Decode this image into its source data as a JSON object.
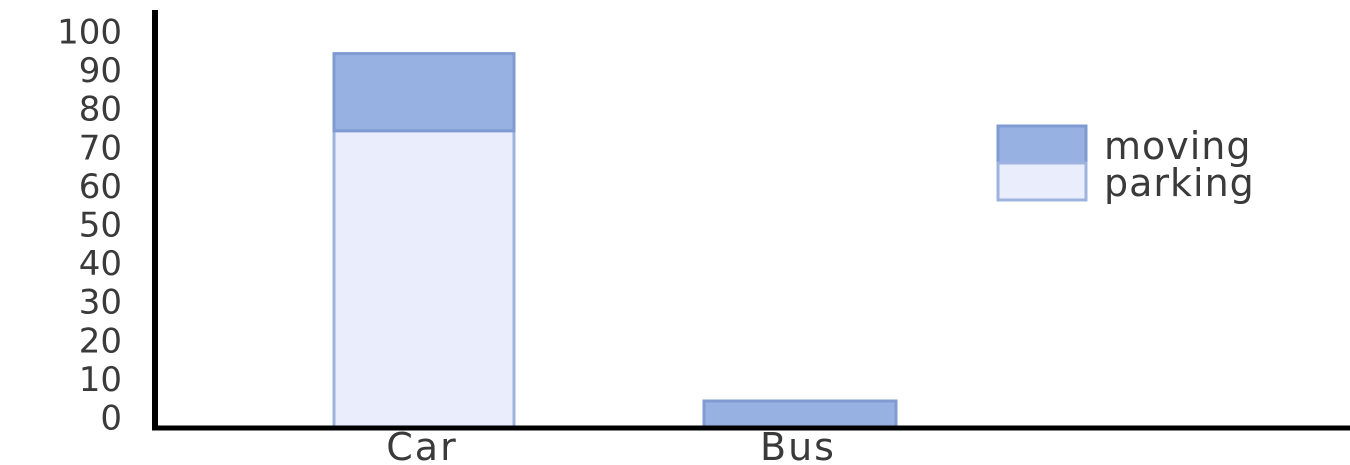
{
  "chart_data": {
    "type": "bar",
    "stacked": true,
    "categories": [
      "Car",
      "Bus"
    ],
    "series": [
      {
        "name": "parking",
        "values": [
          77,
          0
        ],
        "color": "#eaeefc",
        "stroke": "#9fb3df"
      },
      {
        "name": "moving",
        "values": [
          20,
          7
        ],
        "color": "#97b1e2",
        "stroke": "#7f9bd2"
      }
    ],
    "yticks": [
      "0",
      "10",
      "20",
      "30",
      "40",
      "50",
      "60",
      "70",
      "80",
      "90",
      "100"
    ],
    "ylim": [
      0,
      100
    ],
    "grid": false,
    "legend_position": "right",
    "legend_order": [
      "moving",
      "parking"
    ]
  }
}
